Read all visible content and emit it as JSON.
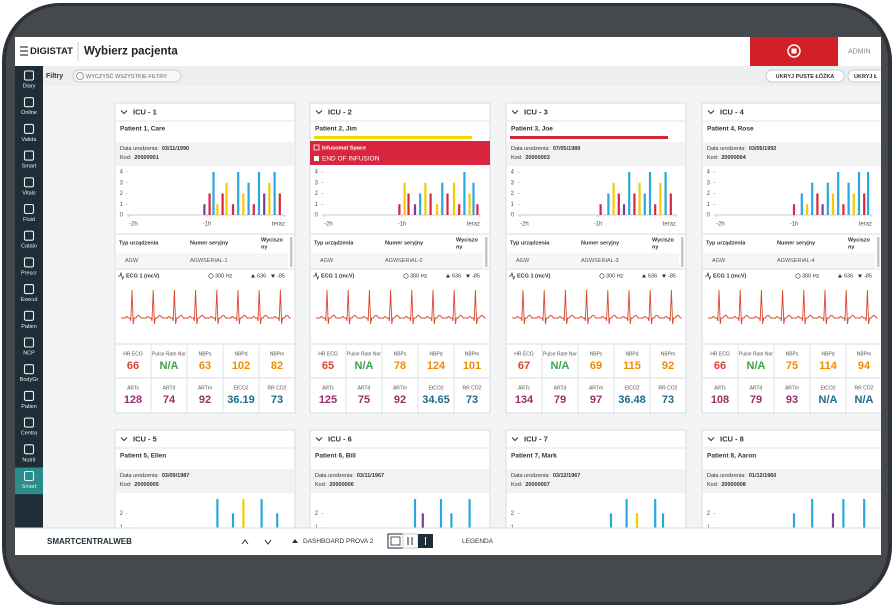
{
  "header": {
    "logo": "DIGISTAT",
    "title": "Wybierz pacjenta",
    "user": "ADMIN"
  },
  "filter_bar": {
    "label": "Filtry",
    "clear": "WYCZYŚĆ WSZYSTKIE FILTRY",
    "buttons": [
      "UKRYJ PUSTE ŁÓŻKA",
      "UKRYJ Ł"
    ]
  },
  "sidebar": [
    "Diary",
    "Online",
    "Valida",
    "Smart",
    "Vitals",
    "Fluid",
    "Catalo",
    "Prescr",
    "Execut",
    "Patien",
    "NCP",
    "BodyGr",
    "Patien",
    "Centra",
    "Nutrit",
    "Smart"
  ],
  "card_labels": {
    "birth": "Data urodzenia:",
    "code": "Kod:",
    "device_type": "Typ urządzenia",
    "serial": "Numer seryjny",
    "muted": [
      "Wyciszo",
      "ny"
    ],
    "xlim": [
      -120,
      0
    ],
    "xticks": [
      {
        "value": -120,
        "label": "-2h"
      },
      {
        "value": -60,
        "label": "-1h"
      },
      {
        "value": 0,
        "label": "teraz"
      }
    ],
    "bar_palette": [
      "#2aa7df",
      "#f2cc00",
      "#d7263d",
      "#7a3e98"
    ],
    "ecg": "ECG 1 (mcV)",
    "freq": "300 Hz",
    "ecg_max": "636",
    "ecg_min": "-85",
    "vital_names": [
      "HR ECG",
      "Pulse Rate Nor",
      "NBPs",
      "NBPd",
      "NBPm",
      "ARTs",
      "ARTd",
      "ARTm",
      "EtCO2",
      "RR CO2"
    ],
    "vital_colors": [
      "#d9452b",
      "#3aa648",
      "#f08c00",
      "#f08c00",
      "#f08c00",
      "#97306e",
      "#97306e",
      "#97306e",
      "#1f6b8a",
      "#1f6b8a"
    ]
  },
  "cards": [
    {
      "bed": "ICU - 1",
      "patient": "Patient 1, Care",
      "birth": "03/11/1990",
      "code": "20000001",
      "device": "AGW",
      "serial": "AGWSERIAL-1",
      "ylim": [
        0,
        4
      ],
      "yticks": [
        0,
        1,
        2,
        3,
        4
      ],
      "bars": [
        [
          -62,
          1,
          3
        ],
        [
          -58,
          2,
          2
        ],
        [
          -55,
          4,
          0
        ],
        [
          -52,
          1,
          1
        ],
        [
          -48,
          2,
          2
        ],
        [
          -45,
          3,
          1
        ],
        [
          -40,
          1,
          2
        ],
        [
          -36,
          4,
          0
        ],
        [
          -32,
          2,
          1
        ],
        [
          -28,
          3,
          0
        ],
        [
          -24,
          1,
          2
        ],
        [
          -20,
          4,
          0
        ],
        [
          -16,
          2,
          3
        ],
        [
          -12,
          3,
          1
        ],
        [
          -8,
          4,
          0
        ],
        [
          -4,
          2,
          2
        ]
      ],
      "vitals": [
        66,
        "N/A",
        63,
        102,
        82,
        128,
        74,
        92,
        36.19,
        73
      ]
    },
    {
      "bed": "ICU - 2",
      "patient": "Patient 2, Jim",
      "status_color": "#f5d800",
      "alarm": {
        "title": "Infusomat Space",
        "message": "END OF INFUSION"
      },
      "device": "AGW",
      "serial": "AGWSERIAL-2",
      "ylim": [
        0,
        4
      ],
      "yticks": [
        0,
        1,
        2,
        3,
        4
      ],
      "bars": [
        [
          -62,
          1,
          2
        ],
        [
          -58,
          3,
          1
        ],
        [
          -55,
          2,
          2
        ],
        [
          -50,
          1,
          3
        ],
        [
          -46,
          2,
          0
        ],
        [
          -42,
          3,
          1
        ],
        [
          -38,
          2,
          2
        ],
        [
          -33,
          1,
          1
        ],
        [
          -29,
          3,
          0
        ],
        [
          -25,
          2,
          2
        ],
        [
          -20,
          3,
          1
        ],
        [
          -16,
          1,
          2
        ],
        [
          -12,
          4,
          0
        ],
        [
          -8,
          2,
          1
        ],
        [
          -5,
          3,
          0
        ],
        [
          -2,
          1,
          2
        ]
      ],
      "vitals": [
        65,
        "N/A",
        78,
        124,
        101,
        125,
        75,
        92,
        34.65,
        73
      ]
    },
    {
      "bed": "ICU - 3",
      "patient": "Patient 3, Joe",
      "status_color": "#d7263d",
      "birth": "07/05/1989",
      "code": "20000003",
      "device": "AGW",
      "serial": "AGWSERIAL-3",
      "ylim": [
        0,
        4
      ],
      "yticks": [
        0,
        1,
        2,
        3,
        4
      ],
      "bars": [
        [
          -58,
          1,
          2
        ],
        [
          -52,
          2,
          0
        ],
        [
          -48,
          3,
          1
        ],
        [
          -44,
          2,
          2
        ],
        [
          -40,
          1,
          3
        ],
        [
          -36,
          4,
          0
        ],
        [
          -32,
          2,
          2
        ],
        [
          -28,
          3,
          1
        ],
        [
          -24,
          2,
          0
        ],
        [
          -20,
          4,
          0
        ],
        [
          -16,
          1,
          2
        ],
        [
          -12,
          3,
          1
        ],
        [
          -8,
          4,
          0
        ],
        [
          -4,
          2,
          2
        ]
      ],
      "vitals": [
        67,
        "N/A",
        69,
        115,
        92,
        134,
        79,
        97,
        36.48,
        73
      ]
    },
    {
      "bed": "ICU - 4",
      "patient": "Patient 4, Rose",
      "birth": "03/05/1992",
      "code": "20000004",
      "device": "AGW",
      "serial": "AGWSERIAL-4",
      "ylim": [
        0,
        4
      ],
      "yticks": [
        0,
        1,
        2,
        3,
        4
      ],
      "bars": [
        [
          -60,
          1,
          2
        ],
        [
          -54,
          2,
          0
        ],
        [
          -50,
          1,
          1
        ],
        [
          -46,
          3,
          0
        ],
        [
          -42,
          2,
          2
        ],
        [
          -38,
          1,
          3
        ],
        [
          -34,
          3,
          0
        ],
        [
          -30,
          2,
          1
        ],
        [
          -26,
          4,
          0
        ],
        [
          -22,
          1,
          2
        ],
        [
          -18,
          3,
          0
        ],
        [
          -14,
          2,
          1
        ],
        [
          -10,
          4,
          0
        ],
        [
          -6,
          2,
          2
        ],
        [
          -3,
          4,
          0
        ]
      ],
      "vitals": [
        66,
        "N/A",
        75,
        114,
        94,
        108,
        79,
        93,
        "N/A",
        "N/A"
      ]
    },
    {
      "bed": "ICU - 5",
      "patient": "Patient 5, Ellen",
      "birth": "03/09/1987",
      "code": "20000005",
      "ylim": [
        0,
        3
      ],
      "yticks": [
        0,
        1,
        2
      ],
      "bars": [
        [
          -60,
          1,
          0
        ],
        [
          -52,
          3,
          0
        ],
        [
          -46,
          1,
          2
        ],
        [
          -40,
          2,
          0
        ],
        [
          -32,
          3,
          1
        ],
        [
          -26,
          1,
          0
        ],
        [
          -18,
          3,
          0
        ],
        [
          -12,
          1,
          3
        ],
        [
          -6,
          2,
          0
        ]
      ]
    },
    {
      "bed": "ICU - 6",
      "patient": "Patient 6, Bill",
      "birth": "03/11/1967",
      "code": "20000006",
      "ylim": [
        0,
        3
      ],
      "yticks": [
        0,
        1,
        2
      ],
      "bars": [
        [
          -58,
          1,
          0
        ],
        [
          -50,
          3,
          0
        ],
        [
          -44,
          2,
          3
        ],
        [
          -38,
          1,
          2
        ],
        [
          -30,
          3,
          0
        ],
        [
          -22,
          2,
          0
        ],
        [
          -14,
          1,
          1
        ],
        [
          -8,
          3,
          0
        ]
      ]
    },
    {
      "bed": "ICU - 7",
      "patient": "Patient 7, Mark",
      "birth": "03/12/1967",
      "code": "20000007",
      "ylim": [
        0,
        3
      ],
      "yticks": [
        0,
        1,
        2
      ],
      "bars": [
        [
          -56,
          1,
          1
        ],
        [
          -50,
          2,
          0
        ],
        [
          -44,
          1,
          2
        ],
        [
          -38,
          3,
          0
        ],
        [
          -30,
          2,
          1
        ],
        [
          -24,
          1,
          3
        ],
        [
          -16,
          3,
          0
        ],
        [
          -10,
          2,
          0
        ],
        [
          -4,
          1,
          2
        ]
      ]
    },
    {
      "bed": "ICU - 8",
      "patient": "Patient 8, Aaron",
      "birth": "01/12/1960",
      "code": "20000008",
      "ylim": [
        0,
        3
      ],
      "yticks": [
        0,
        1,
        2
      ],
      "bars": [
        [
          -60,
          2,
          0
        ],
        [
          -52,
          1,
          2
        ],
        [
          -46,
          3,
          0
        ],
        [
          -38,
          1,
          0
        ],
        [
          -30,
          2,
          3
        ],
        [
          -22,
          3,
          0
        ],
        [
          -14,
          1,
          1
        ],
        [
          -6,
          3,
          0
        ]
      ]
    }
  ],
  "footer": {
    "app": "SMARTCENTRALWEB",
    "dashboard": "DASHBOARD PROVA 2",
    "legend": "LEGENDA"
  }
}
